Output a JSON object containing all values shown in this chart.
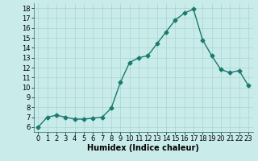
{
  "x": [
    0,
    1,
    2,
    3,
    4,
    5,
    6,
    7,
    8,
    9,
    10,
    11,
    12,
    13,
    14,
    15,
    16,
    17,
    18,
    19,
    20,
    21,
    22,
    23
  ],
  "y": [
    6.0,
    7.0,
    7.2,
    7.0,
    6.8,
    6.8,
    6.9,
    7.0,
    7.9,
    10.5,
    12.5,
    13.0,
    13.2,
    14.4,
    15.6,
    16.8,
    17.5,
    17.9,
    14.8,
    13.2,
    11.8,
    11.5,
    11.7,
    10.2
  ],
  "line_color": "#1a7a6e",
  "marker": "D",
  "markersize": 2.5,
  "linewidth": 1.0,
  "xlabel": "Humidex (Indice chaleur)",
  "xlim": [
    -0.5,
    23.5
  ],
  "ylim": [
    5.5,
    18.5
  ],
  "yticks": [
    6,
    7,
    8,
    9,
    10,
    11,
    12,
    13,
    14,
    15,
    16,
    17,
    18
  ],
  "xticks": [
    0,
    1,
    2,
    3,
    4,
    5,
    6,
    7,
    8,
    9,
    10,
    11,
    12,
    13,
    14,
    15,
    16,
    17,
    18,
    19,
    20,
    21,
    22,
    23
  ],
  "bg_color": "#c9ecea",
  "grid_color": "#a8d5d1",
  "label_fontsize": 7,
  "tick_fontsize": 6
}
